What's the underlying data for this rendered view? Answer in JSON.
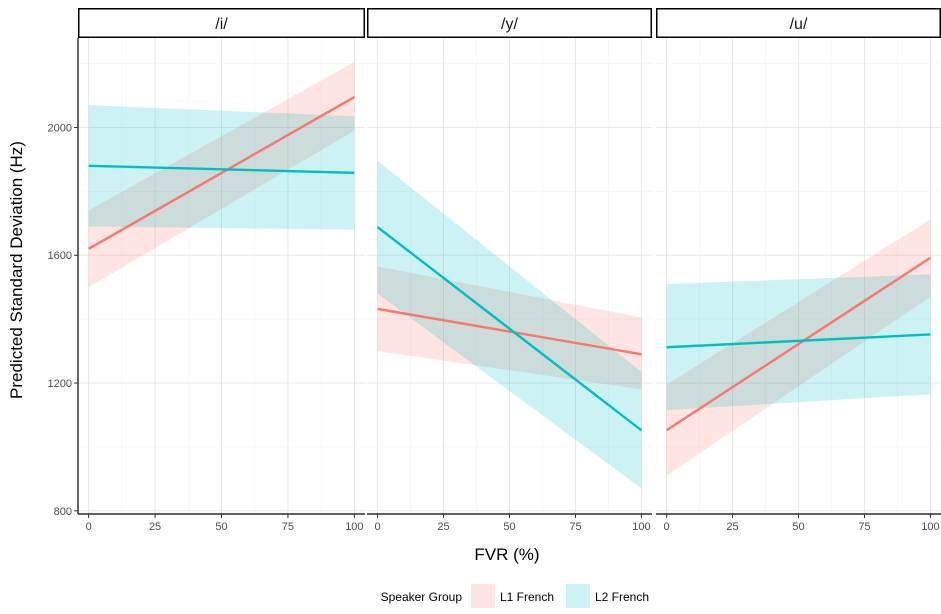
{
  "chart_data": {
    "type": "line",
    "xlabel": "FVR (%)",
    "ylabel": "Predicted Standard Deviation (Hz)",
    "xlim": [
      -4,
      104
    ],
    "ylim": [
      790,
      2280
    ],
    "x_ticks": [
      0,
      25,
      50,
      75,
      100
    ],
    "y_ticks": [
      800,
      1200,
      1600,
      2000
    ],
    "grid": true,
    "legend": {
      "title": "Speaker Group",
      "placement": "bottom",
      "entries": [
        "L1 French",
        "L2 French"
      ]
    },
    "colors": {
      "L1 French": "#F8766D",
      "L2 French": "#00BFC4"
    },
    "panels": [
      {
        "label": "/i/",
        "series": [
          {
            "name": "L1 French",
            "x": [
              0,
              100
            ],
            "y": [
              1620,
              2095
            ],
            "lower": [
              1500,
              1990
            ],
            "upper": [
              1740,
              2205
            ]
          },
          {
            "name": "L2 French",
            "x": [
              0,
              100
            ],
            "y": [
              1880,
              1858
            ],
            "lower": [
              1690,
              1680
            ],
            "upper": [
              2070,
              2035
            ]
          }
        ]
      },
      {
        "label": "/y/",
        "series": [
          {
            "name": "L1 French",
            "x": [
              0,
              100
            ],
            "y": [
              1432,
              1290
            ],
            "lower": [
              1300,
              1180
            ],
            "upper": [
              1565,
              1405
            ]
          },
          {
            "name": "L2 French",
            "x": [
              0,
              100
            ],
            "y": [
              1688,
              1052
            ],
            "lower": [
              1480,
              870
            ],
            "upper": [
              1895,
              1235
            ]
          }
        ]
      },
      {
        "label": "/u/",
        "series": [
          {
            "name": "L1 French",
            "x": [
              0,
              100
            ],
            "y": [
              1052,
              1592
            ],
            "lower": [
              910,
              1470
            ],
            "upper": [
              1195,
              1712
            ]
          },
          {
            "name": "L2 French",
            "x": [
              0,
              100
            ],
            "y": [
              1312,
              1352
            ],
            "lower": [
              1115,
              1165
            ],
            "upper": [
              1510,
              1540
            ]
          }
        ]
      }
    ]
  }
}
